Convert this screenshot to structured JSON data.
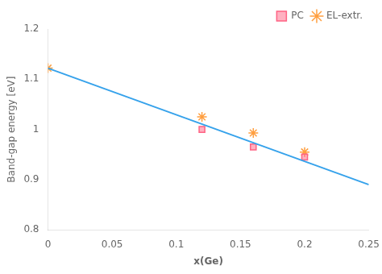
{
  "chart_data": {
    "type": "scatter",
    "xlabel": "x(Ge)",
    "ylabel": "Band-gap energy [eV]",
    "xlim": [
      0,
      0.25
    ],
    "ylim": [
      0.8,
      1.2
    ],
    "xticks": [
      0,
      0.05,
      0.1,
      0.15,
      0.2,
      0.25
    ],
    "yticks": [
      0.8,
      0.9,
      1,
      1.1,
      1.2
    ],
    "grid": false,
    "legend": "upper right",
    "series": [
      {
        "type": "line",
        "line_style": "solid",
        "x": [
          0,
          0.25
        ],
        "values": [
          1.122,
          0.89
        ]
      },
      {
        "name": "PC",
        "type": "scatter",
        "marker": "square",
        "x": [
          0.12,
          0.16,
          0.2
        ],
        "values": [
          1.0,
          0.965,
          0.945
        ]
      },
      {
        "name": "EL-extr.",
        "type": "scatter",
        "marker": "star",
        "x": [
          0.0,
          0.12,
          0.16,
          0.2
        ],
        "values": [
          1.122,
          1.025,
          0.993,
          0.955
        ]
      }
    ]
  }
}
